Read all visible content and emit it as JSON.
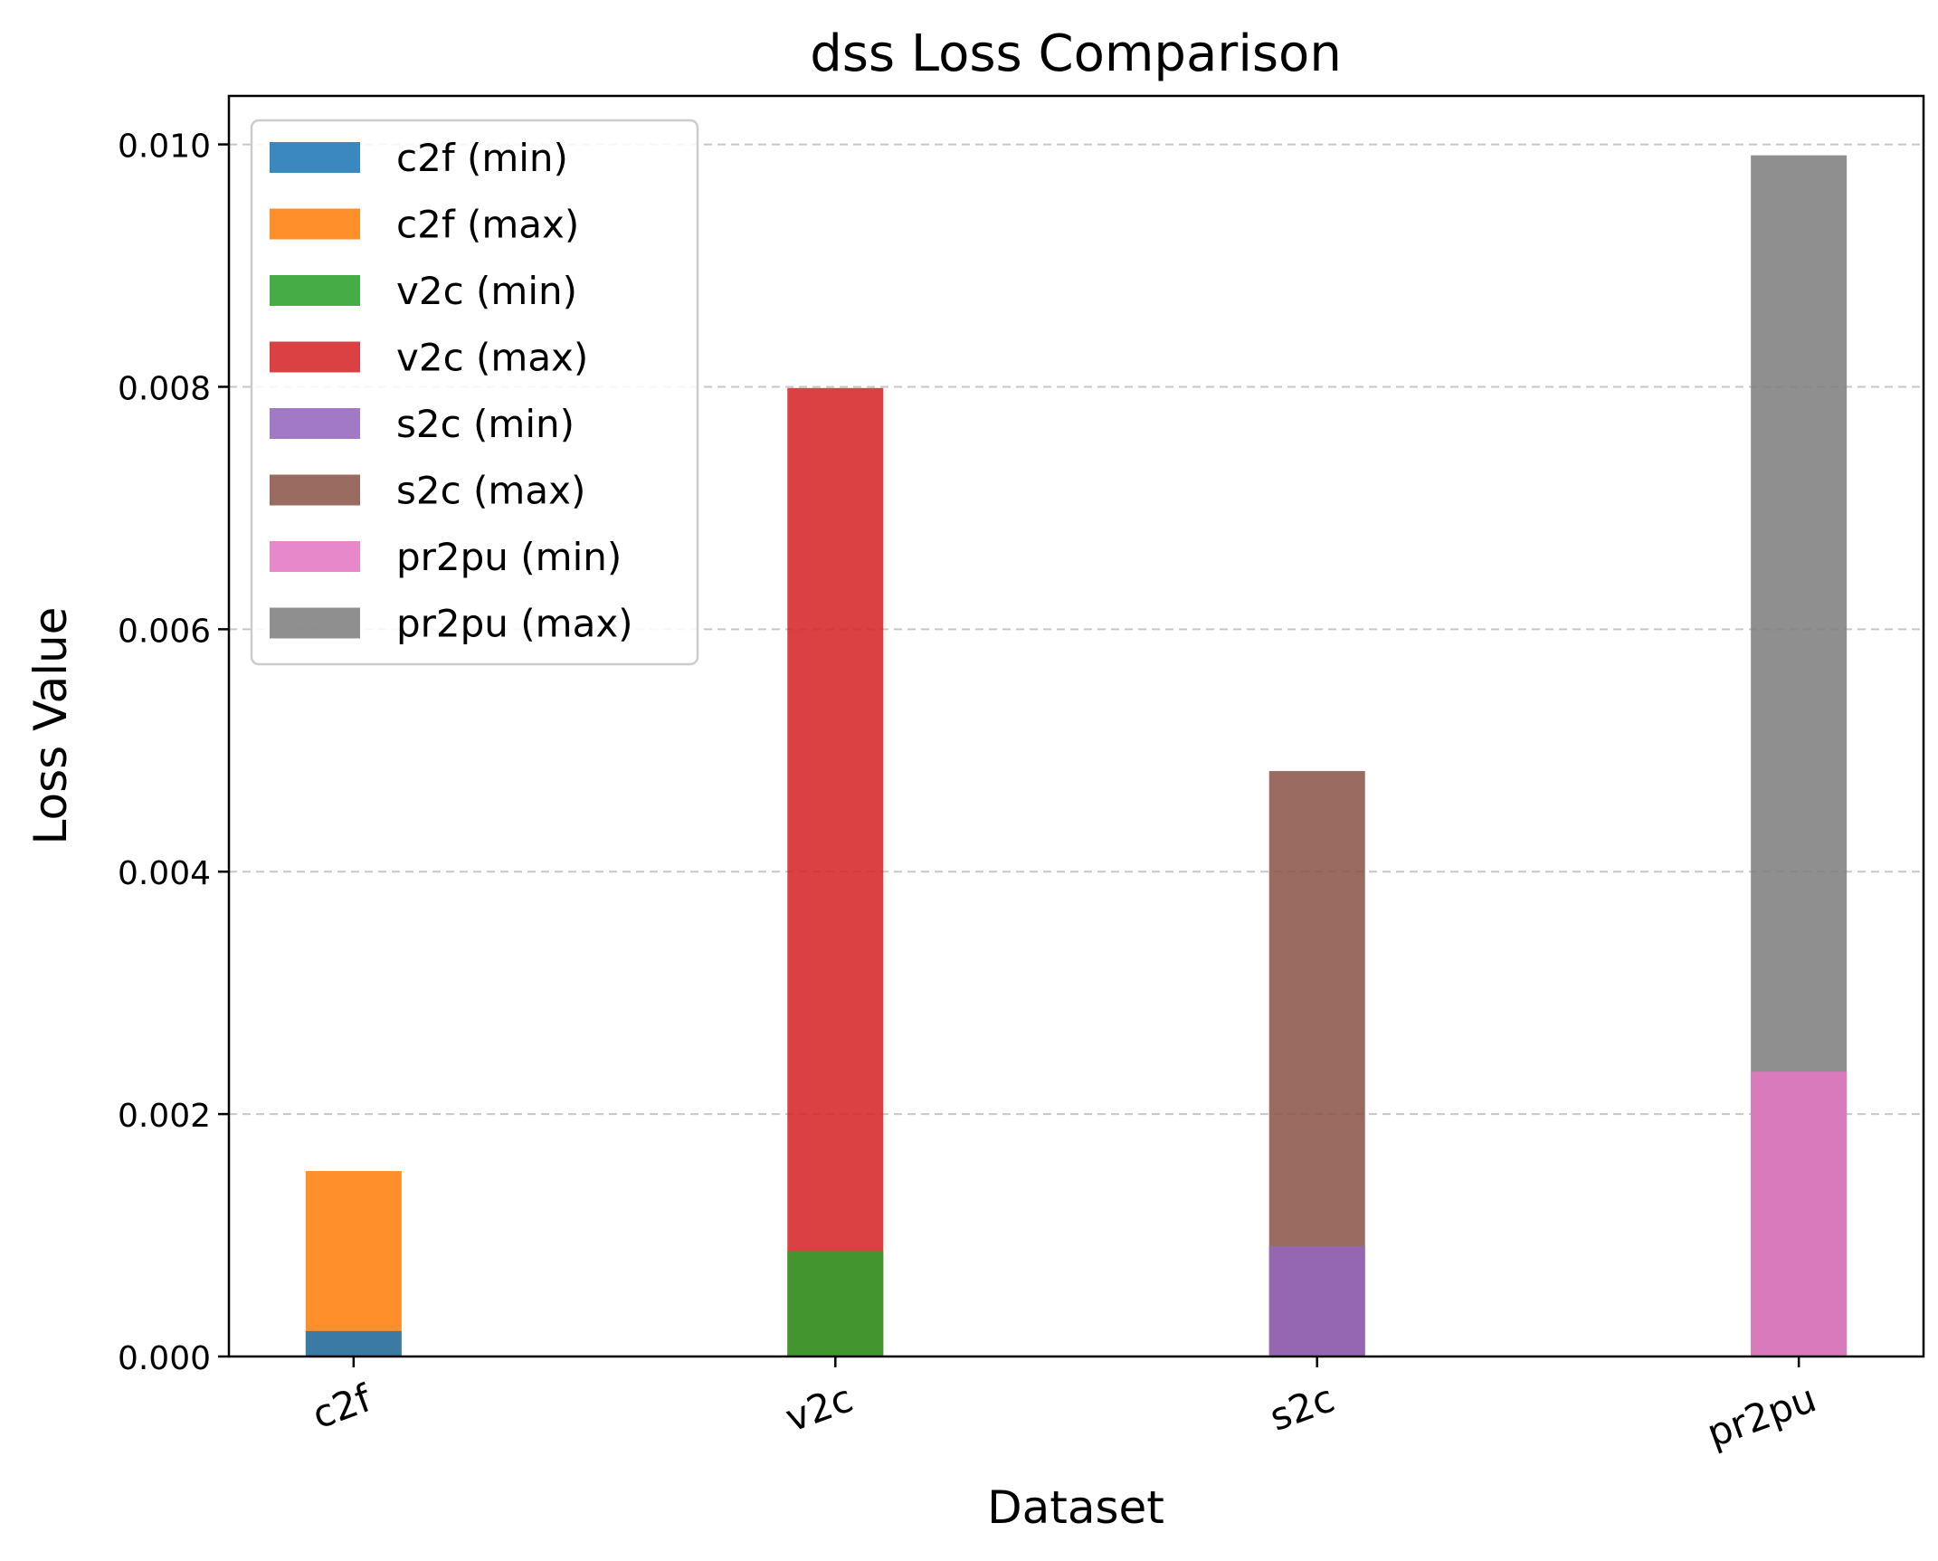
{
  "chart_data": {
    "type": "bar",
    "title": "dss Loss Comparison",
    "xlabel": "Dataset",
    "ylabel": "Loss Value",
    "categories": [
      "c2f",
      "v2c",
      "s2c",
      "pr2pu"
    ],
    "ylim": [
      0,
      0.0104
    ],
    "yticks": [
      0.0,
      0.002,
      0.004,
      0.006,
      0.008,
      0.01
    ],
    "ytick_labels": [
      "0.000",
      "0.002",
      "0.004",
      "0.006",
      "0.008",
      "0.010"
    ],
    "grid": "y-dashed",
    "legend_position": "top-left",
    "xtick_rotation": 20,
    "series": [
      {
        "name": "c2f (min)",
        "category": "c2f",
        "value": 0.00021,
        "color": "#1f77b4"
      },
      {
        "name": "c2f (max)",
        "category": "c2f",
        "value": 0.00153,
        "color": "#ff7f0e"
      },
      {
        "name": "v2c (min)",
        "category": "v2c",
        "value": 0.00087,
        "color": "#2ca02c"
      },
      {
        "name": "v2c (max)",
        "category": "v2c",
        "value": 0.00799,
        "color": "#d62728"
      },
      {
        "name": "s2c (min)",
        "category": "s2c",
        "value": 0.00091,
        "color": "#9467bd"
      },
      {
        "name": "s2c (max)",
        "category": "s2c",
        "value": 0.00483,
        "color": "#8c564b"
      },
      {
        "name": "pr2pu (min)",
        "category": "pr2pu",
        "value": 0.00235,
        "color": "#e377c2"
      },
      {
        "name": "pr2pu (max)",
        "category": "pr2pu",
        "value": 0.00991,
        "color": "#7f7f7f"
      }
    ]
  }
}
